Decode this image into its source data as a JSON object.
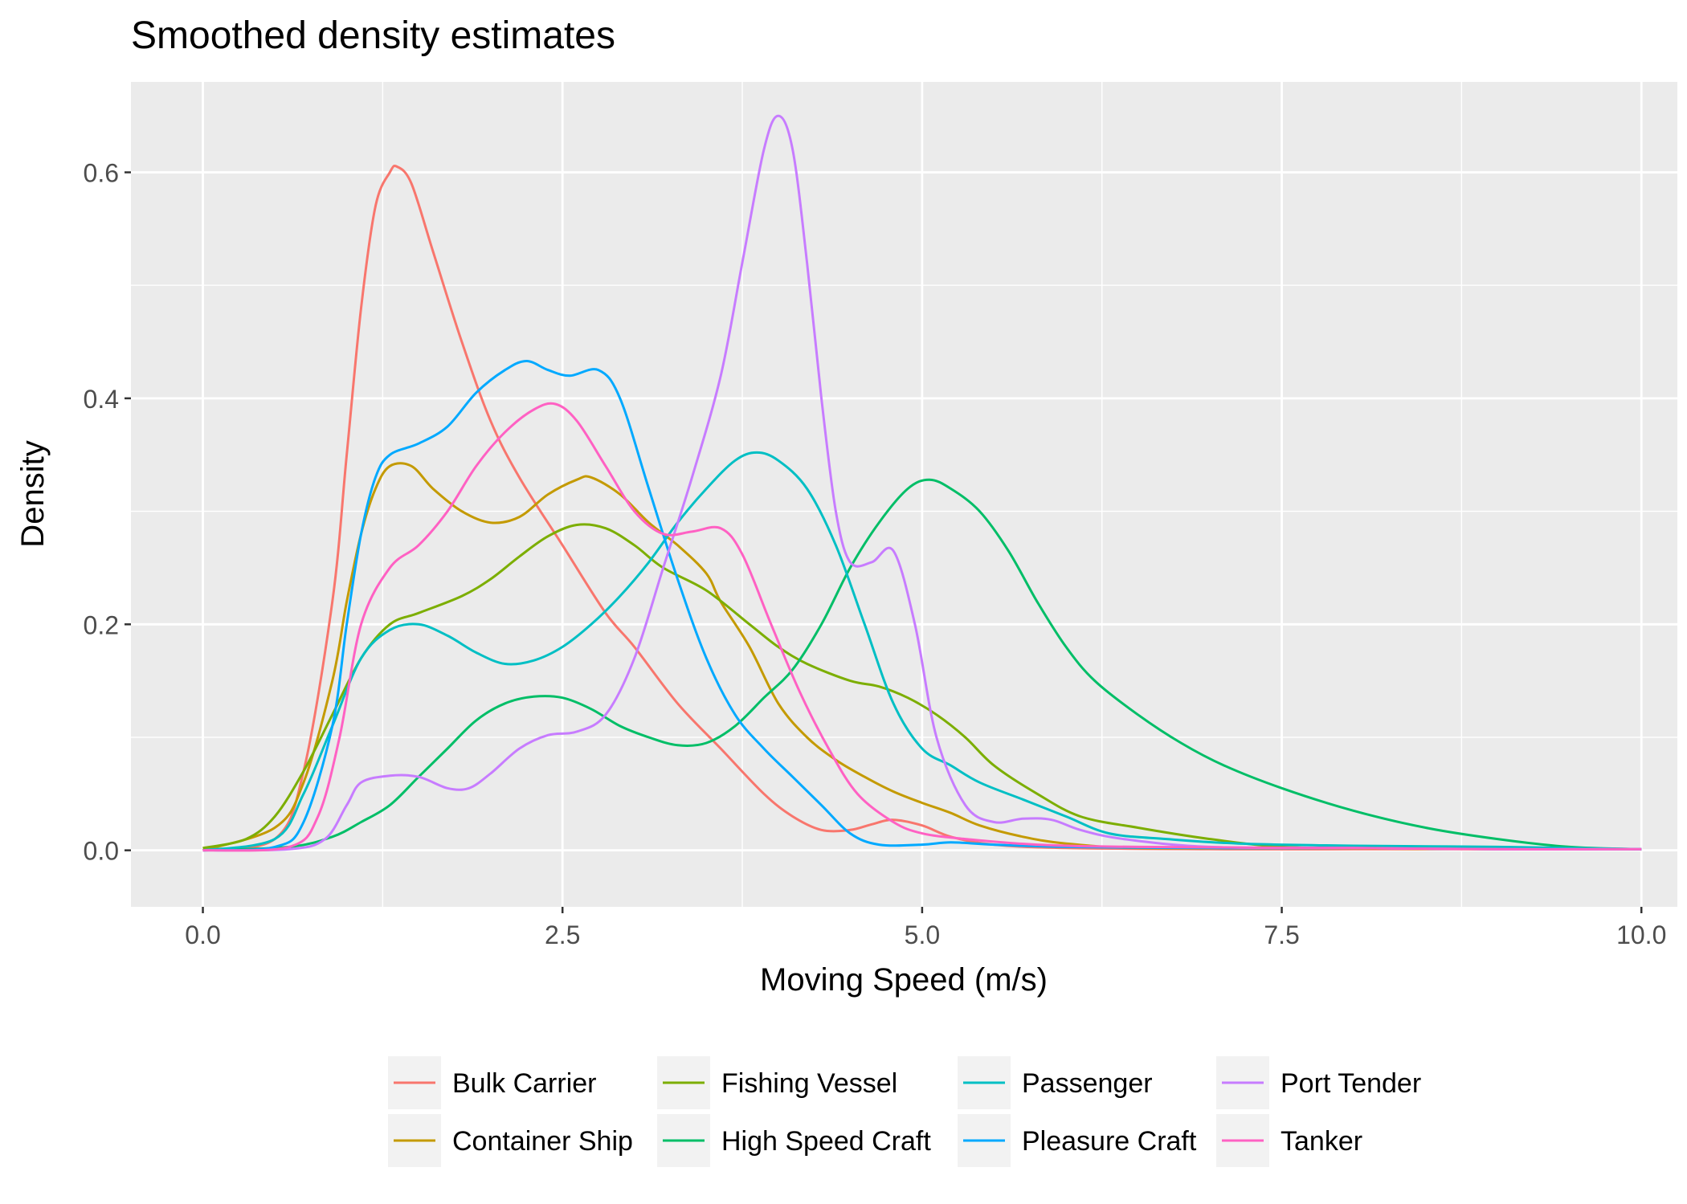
{
  "chart_data": {
    "type": "line",
    "title": "Smoothed density estimates",
    "xlabel": "Moving Speed (m/s)",
    "ylabel": "Density",
    "xlim": [
      -0.5,
      10.25
    ],
    "ylim": [
      -0.05,
      0.68
    ],
    "x_ticks": [
      0.0,
      2.5,
      5.0,
      7.5,
      10.0
    ],
    "x_tick_labels": [
      "0.0",
      "2.5",
      "5.0",
      "7.5",
      "10.0"
    ],
    "y_ticks": [
      0.0,
      0.2,
      0.4,
      0.6
    ],
    "y_tick_labels": [
      "0.0",
      "0.2",
      "0.4",
      "0.6"
    ],
    "grid": true,
    "legend_position": "bottom",
    "series": [
      {
        "name": "Bulk Carrier",
        "color": "#F8766D",
        "points": [
          [
            0,
            0
          ],
          [
            0.5,
            0.01
          ],
          [
            0.7,
            0.07
          ],
          [
            0.9,
            0.22
          ],
          [
            1.0,
            0.35
          ],
          [
            1.1,
            0.48
          ],
          [
            1.2,
            0.57
          ],
          [
            1.3,
            0.6
          ],
          [
            1.35,
            0.605
          ],
          [
            1.45,
            0.59
          ],
          [
            1.6,
            0.53
          ],
          [
            1.8,
            0.45
          ],
          [
            2.0,
            0.38
          ],
          [
            2.2,
            0.33
          ],
          [
            2.5,
            0.27
          ],
          [
            2.8,
            0.21
          ],
          [
            3.0,
            0.18
          ],
          [
            3.3,
            0.13
          ],
          [
            3.6,
            0.09
          ],
          [
            3.9,
            0.05
          ],
          [
            4.1,
            0.03
          ],
          [
            4.3,
            0.018
          ],
          [
            4.5,
            0.018
          ],
          [
            4.65,
            0.023
          ],
          [
            4.8,
            0.027
          ],
          [
            5.0,
            0.022
          ],
          [
            5.2,
            0.012
          ],
          [
            5.5,
            0.005
          ],
          [
            6,
            0.002
          ],
          [
            7,
            0.001
          ],
          [
            8,
            0.001
          ],
          [
            9,
            0.001
          ],
          [
            10,
            0.001
          ]
        ]
      },
      {
        "name": "Container Ship",
        "color": "#C49A00",
        "points": [
          [
            0,
            0
          ],
          [
            0.5,
            0.02
          ],
          [
            0.7,
            0.06
          ],
          [
            0.9,
            0.15
          ],
          [
            1.0,
            0.22
          ],
          [
            1.1,
            0.28
          ],
          [
            1.2,
            0.32
          ],
          [
            1.3,
            0.34
          ],
          [
            1.45,
            0.34
          ],
          [
            1.6,
            0.32
          ],
          [
            1.8,
            0.3
          ],
          [
            2.0,
            0.29
          ],
          [
            2.2,
            0.295
          ],
          [
            2.4,
            0.315
          ],
          [
            2.6,
            0.328
          ],
          [
            2.7,
            0.33
          ],
          [
            2.9,
            0.315
          ],
          [
            3.1,
            0.29
          ],
          [
            3.3,
            0.27
          ],
          [
            3.5,
            0.245
          ],
          [
            3.6,
            0.22
          ],
          [
            3.8,
            0.18
          ],
          [
            4.0,
            0.13
          ],
          [
            4.2,
            0.1
          ],
          [
            4.4,
            0.08
          ],
          [
            4.6,
            0.065
          ],
          [
            4.8,
            0.052
          ],
          [
            5.0,
            0.042
          ],
          [
            5.2,
            0.033
          ],
          [
            5.4,
            0.022
          ],
          [
            5.7,
            0.012
          ],
          [
            6,
            0.006
          ],
          [
            6.5,
            0.002
          ],
          [
            7.5,
            0.002
          ],
          [
            9,
            0.001
          ],
          [
            10,
            0.001
          ]
        ]
      },
      {
        "name": "Fishing Vessel",
        "color": "#7CAE00",
        "points": [
          [
            0,
            0.002
          ],
          [
            0.3,
            0.01
          ],
          [
            0.5,
            0.03
          ],
          [
            0.7,
            0.07
          ],
          [
            0.9,
            0.12
          ],
          [
            1.1,
            0.17
          ],
          [
            1.3,
            0.2
          ],
          [
            1.5,
            0.21
          ],
          [
            1.8,
            0.225
          ],
          [
            2.0,
            0.24
          ],
          [
            2.2,
            0.26
          ],
          [
            2.4,
            0.278
          ],
          [
            2.6,
            0.288
          ],
          [
            2.8,
            0.285
          ],
          [
            3.0,
            0.27
          ],
          [
            3.2,
            0.25
          ],
          [
            3.5,
            0.23
          ],
          [
            3.8,
            0.2
          ],
          [
            4.0,
            0.18
          ],
          [
            4.2,
            0.165
          ],
          [
            4.5,
            0.15
          ],
          [
            4.7,
            0.145
          ],
          [
            4.9,
            0.135
          ],
          [
            5.1,
            0.12
          ],
          [
            5.3,
            0.1
          ],
          [
            5.5,
            0.075
          ],
          [
            5.8,
            0.05
          ],
          [
            6.1,
            0.03
          ],
          [
            6.5,
            0.02
          ],
          [
            7,
            0.01
          ],
          [
            7.5,
            0.003
          ],
          [
            8,
            0.002
          ],
          [
            8.5,
            0.003
          ],
          [
            9,
            0.002
          ],
          [
            10,
            0.001
          ]
        ]
      },
      {
        "name": "High Speed Craft",
        "color": "#00BE67",
        "points": [
          [
            0,
            0
          ],
          [
            0.6,
            0.003
          ],
          [
            0.9,
            0.012
          ],
          [
            1.1,
            0.025
          ],
          [
            1.3,
            0.04
          ],
          [
            1.5,
            0.065
          ],
          [
            1.7,
            0.09
          ],
          [
            1.9,
            0.115
          ],
          [
            2.1,
            0.13
          ],
          [
            2.3,
            0.136
          ],
          [
            2.5,
            0.135
          ],
          [
            2.7,
            0.125
          ],
          [
            2.9,
            0.11
          ],
          [
            3.1,
            0.1
          ],
          [
            3.3,
            0.093
          ],
          [
            3.5,
            0.095
          ],
          [
            3.7,
            0.11
          ],
          [
            3.9,
            0.135
          ],
          [
            4.1,
            0.16
          ],
          [
            4.3,
            0.2
          ],
          [
            4.5,
            0.25
          ],
          [
            4.7,
            0.29
          ],
          [
            4.9,
            0.32
          ],
          [
            5.05,
            0.328
          ],
          [
            5.2,
            0.32
          ],
          [
            5.4,
            0.3
          ],
          [
            5.6,
            0.265
          ],
          [
            5.8,
            0.22
          ],
          [
            6.0,
            0.18
          ],
          [
            6.2,
            0.15
          ],
          [
            6.5,
            0.12
          ],
          [
            6.8,
            0.095
          ],
          [
            7.1,
            0.075
          ],
          [
            7.5,
            0.055
          ],
          [
            8.0,
            0.035
          ],
          [
            8.5,
            0.02
          ],
          [
            9.0,
            0.01
          ],
          [
            9.5,
            0.003
          ],
          [
            10,
            0.001
          ]
        ]
      },
      {
        "name": "Passenger",
        "color": "#00BFC4",
        "points": [
          [
            0,
            0
          ],
          [
            0.5,
            0.01
          ],
          [
            0.7,
            0.05
          ],
          [
            0.9,
            0.11
          ],
          [
            1.1,
            0.17
          ],
          [
            1.3,
            0.195
          ],
          [
            1.5,
            0.2
          ],
          [
            1.7,
            0.19
          ],
          [
            1.9,
            0.175
          ],
          [
            2.1,
            0.165
          ],
          [
            2.3,
            0.168
          ],
          [
            2.5,
            0.18
          ],
          [
            2.7,
            0.2
          ],
          [
            2.9,
            0.225
          ],
          [
            3.1,
            0.255
          ],
          [
            3.3,
            0.29
          ],
          [
            3.5,
            0.32
          ],
          [
            3.7,
            0.345
          ],
          [
            3.85,
            0.352
          ],
          [
            4.0,
            0.345
          ],
          [
            4.2,
            0.32
          ],
          [
            4.4,
            0.27
          ],
          [
            4.6,
            0.2
          ],
          [
            4.8,
            0.13
          ],
          [
            5.0,
            0.09
          ],
          [
            5.2,
            0.075
          ],
          [
            5.4,
            0.06
          ],
          [
            5.7,
            0.045
          ],
          [
            6.0,
            0.03
          ],
          [
            6.3,
            0.015
          ],
          [
            6.7,
            0.01
          ],
          [
            7.2,
            0.006
          ],
          [
            8,
            0.004
          ],
          [
            9,
            0.003
          ],
          [
            10,
            0.001
          ]
        ]
      },
      {
        "name": "Pleasure Craft",
        "color": "#00A9FF",
        "points": [
          [
            0,
            0
          ],
          [
            0.5,
            0.003
          ],
          [
            0.7,
            0.025
          ],
          [
            0.9,
            0.11
          ],
          [
            1.0,
            0.2
          ],
          [
            1.1,
            0.28
          ],
          [
            1.2,
            0.33
          ],
          [
            1.3,
            0.35
          ],
          [
            1.5,
            0.36
          ],
          [
            1.7,
            0.375
          ],
          [
            1.9,
            0.405
          ],
          [
            2.1,
            0.425
          ],
          [
            2.25,
            0.433
          ],
          [
            2.4,
            0.425
          ],
          [
            2.55,
            0.42
          ],
          [
            2.75,
            0.425
          ],
          [
            2.9,
            0.4
          ],
          [
            3.1,
            0.32
          ],
          [
            3.3,
            0.24
          ],
          [
            3.5,
            0.17
          ],
          [
            3.7,
            0.12
          ],
          [
            3.9,
            0.09
          ],
          [
            4.1,
            0.065
          ],
          [
            4.3,
            0.04
          ],
          [
            4.5,
            0.015
          ],
          [
            4.7,
            0.005
          ],
          [
            5.0,
            0.005
          ],
          [
            5.2,
            0.007
          ],
          [
            5.5,
            0.005
          ],
          [
            6,
            0.003
          ],
          [
            7,
            0.002
          ],
          [
            8,
            0.002
          ],
          [
            9,
            0.001
          ],
          [
            10,
            0.001
          ]
        ]
      },
      {
        "name": "Port Tender",
        "color": "#C77CFF",
        "points": [
          [
            0,
            0
          ],
          [
            0.6,
            0.001
          ],
          [
            0.85,
            0.01
          ],
          [
            1.0,
            0.04
          ],
          [
            1.1,
            0.06
          ],
          [
            1.3,
            0.066
          ],
          [
            1.5,
            0.065
          ],
          [
            1.7,
            0.055
          ],
          [
            1.85,
            0.055
          ],
          [
            2.0,
            0.068
          ],
          [
            2.2,
            0.09
          ],
          [
            2.4,
            0.102
          ],
          [
            2.6,
            0.105
          ],
          [
            2.8,
            0.12
          ],
          [
            3.0,
            0.17
          ],
          [
            3.2,
            0.25
          ],
          [
            3.4,
            0.33
          ],
          [
            3.6,
            0.42
          ],
          [
            3.75,
            0.52
          ],
          [
            3.9,
            0.62
          ],
          [
            4.0,
            0.65
          ],
          [
            4.1,
            0.62
          ],
          [
            4.2,
            0.52
          ],
          [
            4.3,
            0.4
          ],
          [
            4.4,
            0.3
          ],
          [
            4.5,
            0.255
          ],
          [
            4.65,
            0.255
          ],
          [
            4.8,
            0.265
          ],
          [
            4.95,
            0.2
          ],
          [
            5.1,
            0.1
          ],
          [
            5.3,
            0.04
          ],
          [
            5.5,
            0.025
          ],
          [
            5.7,
            0.028
          ],
          [
            5.9,
            0.027
          ],
          [
            6.1,
            0.018
          ],
          [
            6.4,
            0.01
          ],
          [
            7,
            0.003
          ],
          [
            8,
            0.002
          ],
          [
            9,
            0.001
          ],
          [
            10,
            0.001
          ]
        ]
      },
      {
        "name": "Tanker",
        "color": "#FF61C3",
        "points": [
          [
            0,
            0
          ],
          [
            0.6,
            0.003
          ],
          [
            0.8,
            0.03
          ],
          [
            0.95,
            0.1
          ],
          [
            1.1,
            0.2
          ],
          [
            1.3,
            0.25
          ],
          [
            1.5,
            0.27
          ],
          [
            1.7,
            0.3
          ],
          [
            1.9,
            0.34
          ],
          [
            2.1,
            0.37
          ],
          [
            2.3,
            0.39
          ],
          [
            2.45,
            0.395
          ],
          [
            2.6,
            0.38
          ],
          [
            2.8,
            0.34
          ],
          [
            3.0,
            0.3
          ],
          [
            3.2,
            0.28
          ],
          [
            3.4,
            0.282
          ],
          [
            3.6,
            0.285
          ],
          [
            3.75,
            0.262
          ],
          [
            3.95,
            0.2
          ],
          [
            4.15,
            0.14
          ],
          [
            4.35,
            0.09
          ],
          [
            4.55,
            0.05
          ],
          [
            4.8,
            0.025
          ],
          [
            5.0,
            0.015
          ],
          [
            5.3,
            0.01
          ],
          [
            5.8,
            0.005
          ],
          [
            6.5,
            0.003
          ],
          [
            8,
            0.002
          ],
          [
            9,
            0.001
          ],
          [
            10,
            0.001
          ]
        ]
      }
    ]
  }
}
